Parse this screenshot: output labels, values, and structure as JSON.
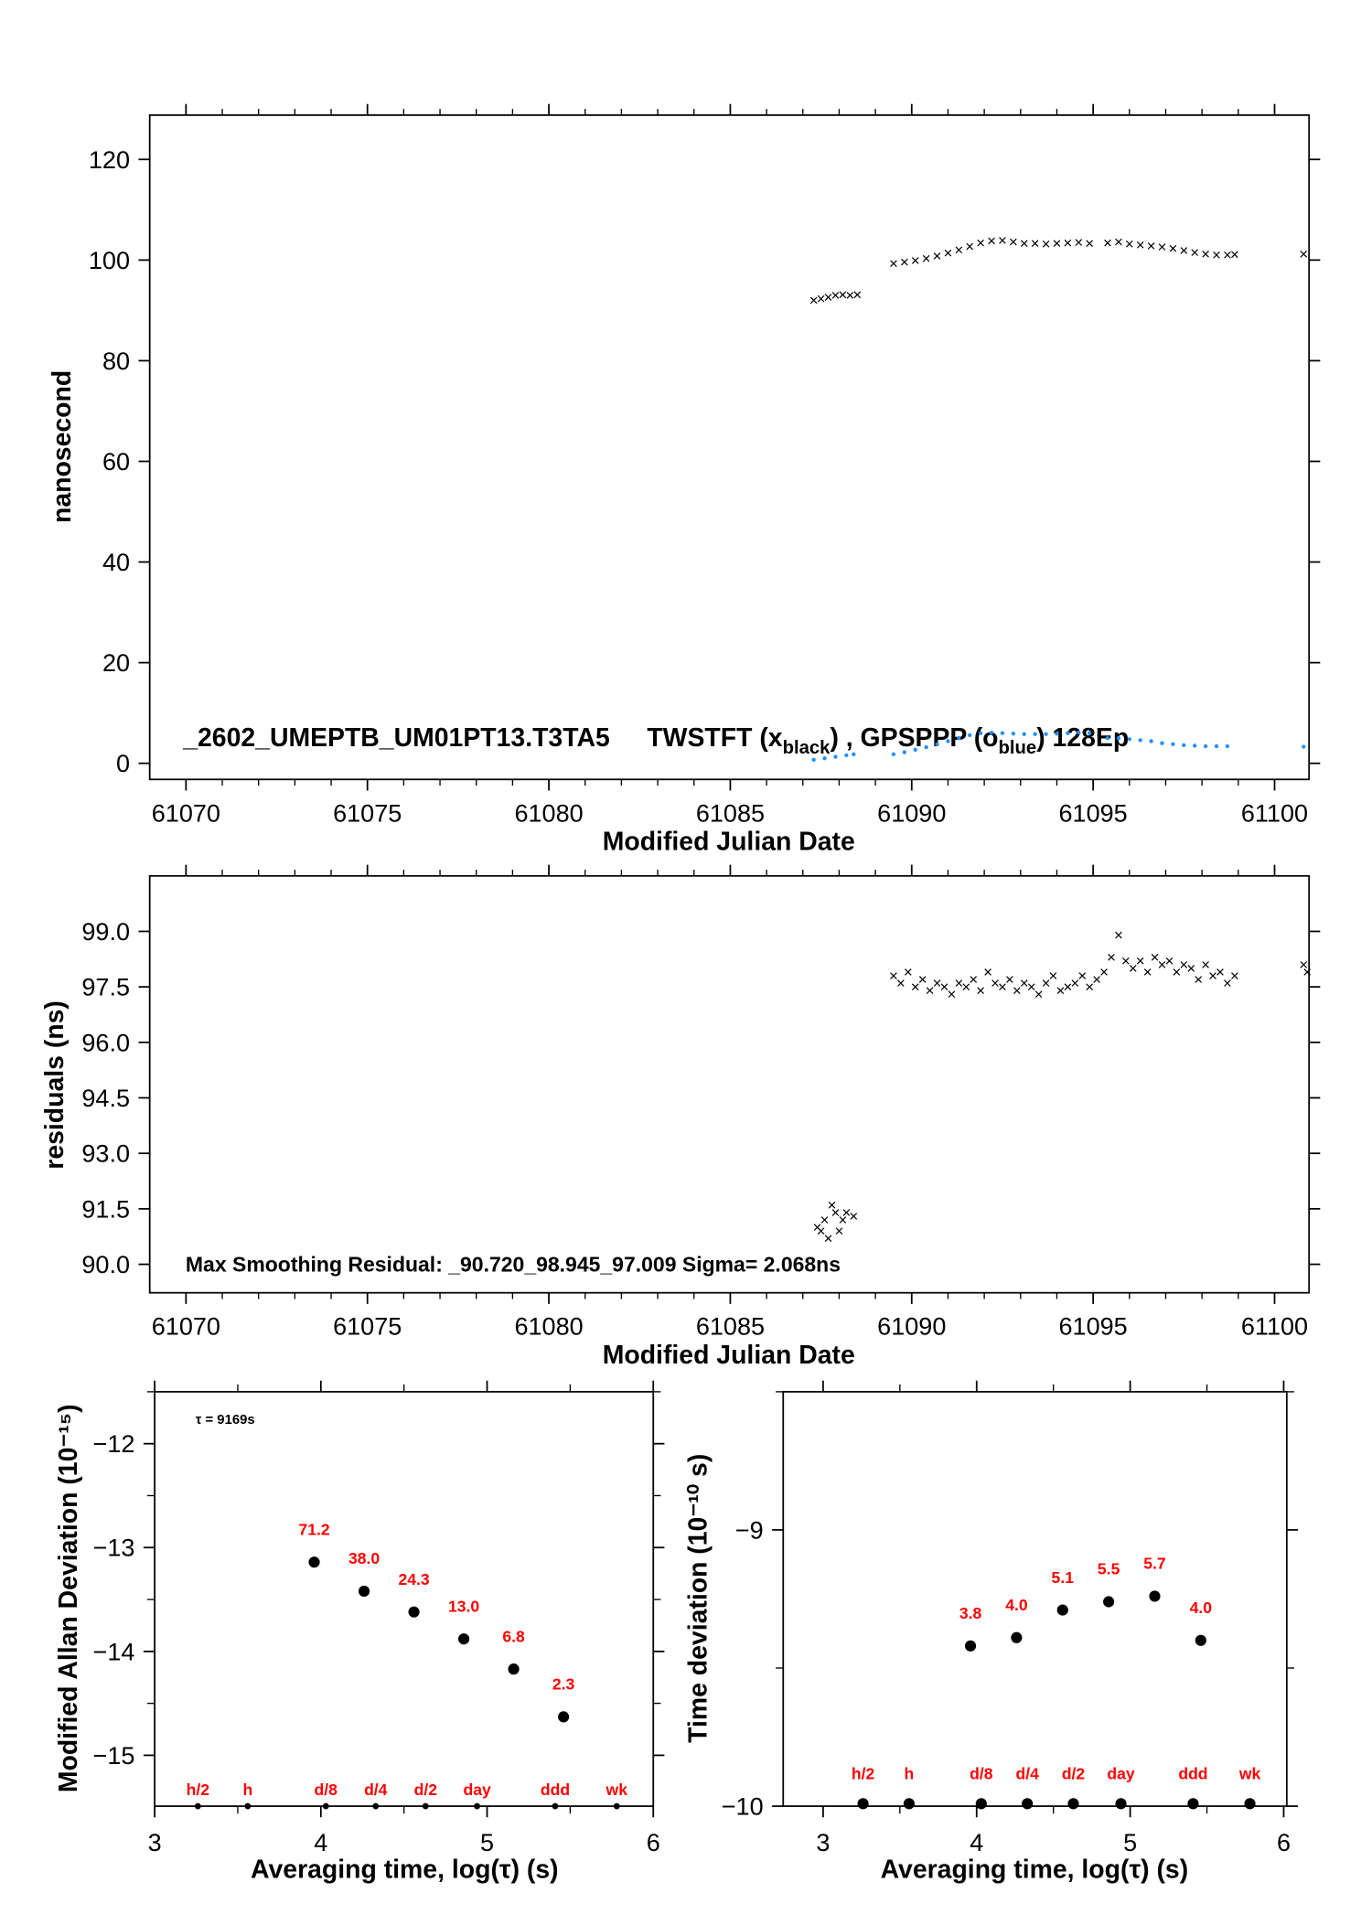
{
  "chart_data": [
    {
      "type": "scatter",
      "title_parts": {
        "main": "_2602_UMEPTB_UM01PT13.T3TA5",
        "s1": "TWSTFT (x",
        "sub1": "black",
        "s2": ") ,  GPSPPP (o",
        "sub2": "blue",
        "s3": ")  128Ep"
      },
      "xlabel": "Modified Julian Date",
      "ylabel": "nanosecond",
      "xlim": [
        61069,
        61100.95
      ],
      "ylim": [
        -3.2,
        128.8
      ],
      "xticks": [
        61070,
        61075,
        61080,
        61085,
        61090,
        61095,
        61100
      ],
      "yticks": [
        0,
        20,
        40,
        60,
        80,
        100,
        120
      ],
      "colors": {
        "black": "#000000",
        "blue": "#1e90ff"
      },
      "series": [
        {
          "name": "TWSTFT",
          "marker": "x",
          "color": "#000000",
          "x": [
            61087.3,
            61087.5,
            61087.7,
            61087.9,
            61088.1,
            61088.3,
            61088.5,
            61089.5,
            61089.8,
            61090.1,
            61090.4,
            61090.7,
            61091.0,
            61091.3,
            61091.6,
            61091.9,
            61092.2,
            61092.5,
            61092.8,
            61093.1,
            61093.4,
            61093.7,
            61094.0,
            61094.3,
            61094.6,
            61094.9,
            61095.4,
            61095.7,
            61096.0,
            61096.3,
            61096.6,
            61096.9,
            61097.2,
            61097.5,
            61097.8,
            61098.1,
            61098.4,
            61098.7,
            61098.9,
            61100.8
          ],
          "y": [
            92.0,
            92.3,
            92.6,
            93.0,
            93.1,
            93.0,
            93.1,
            99.3,
            99.6,
            99.9,
            100.3,
            100.8,
            101.4,
            102.0,
            102.7,
            103.4,
            103.8,
            103.9,
            103.6,
            103.3,
            103.3,
            103.2,
            103.3,
            103.4,
            103.5,
            103.3,
            103.4,
            103.6,
            103.2,
            103.0,
            102.8,
            102.6,
            102.3,
            101.9,
            101.5,
            101.2,
            101.0,
            101.0,
            101.1,
            101.2
          ]
        },
        {
          "name": "GPSPPP",
          "marker": "o",
          "color": "#1e90ff",
          "x": [
            61087.3,
            61087.6,
            61087.9,
            61088.2,
            61088.4,
            61089.5,
            61089.8,
            61090.1,
            61090.4,
            61090.7,
            61091.0,
            61091.3,
            61091.6,
            61091.9,
            61092.2,
            61092.5,
            61092.8,
            61093.1,
            61093.4,
            61093.7,
            61094.0,
            61094.3,
            61094.6,
            61094.9,
            61095.4,
            61095.7,
            61096.0,
            61096.3,
            61096.6,
            61096.9,
            61097.2,
            61097.5,
            61097.8,
            61098.1,
            61098.4,
            61098.7,
            61100.8
          ],
          "y": [
            0.7,
            1.0,
            1.3,
            1.6,
            1.8,
            1.8,
            2.2,
            2.7,
            3.2,
            3.8,
            4.4,
            5.0,
            5.6,
            6.0,
            6.1,
            6.0,
            5.9,
            5.8,
            5.8,
            5.8,
            5.9,
            6.0,
            6.1,
            6.0,
            5.0,
            5.0,
            4.8,
            4.6,
            4.4,
            4.0,
            3.8,
            3.6,
            3.5,
            3.4,
            3.4,
            3.4,
            3.3
          ]
        }
      ]
    },
    {
      "type": "scatter",
      "annotation": "Max Smoothing Residual: _90.720_98.945_97.009  Sigma= 2.068ns",
      "xlabel": "Modified Julian Date",
      "ylabel": "residuals (ns)",
      "xlim": [
        61069,
        61100.95
      ],
      "ylim": [
        89.23,
        100.5
      ],
      "xticks": [
        61070,
        61075,
        61080,
        61085,
        61090,
        61095,
        61100
      ],
      "yticks": [
        "90.0",
        "91.5",
        "93.0",
        "94.5",
        "96.0",
        "97.5",
        "99.0"
      ],
      "series": [
        {
          "marker": "x",
          "color": "#000000",
          "x": [
            61087.4,
            61087.5,
            61087.6,
            61087.7,
            61087.8,
            61087.9,
            61088.0,
            61088.1,
            61088.2,
            61088.4,
            61089.5,
            61089.7,
            61089.9,
            61090.1,
            61090.3,
            61090.5,
            61090.7,
            61090.9,
            61091.1,
            61091.3,
            61091.5,
            61091.7,
            61091.9,
            61092.1,
            61092.3,
            61092.5,
            61092.7,
            61092.9,
            61093.1,
            61093.3,
            61093.5,
            61093.7,
            61093.9,
            61094.1,
            61094.3,
            61094.5,
            61094.7,
            61094.9,
            61095.1,
            61095.3,
            61095.5,
            61095.7,
            61095.9,
            61096.1,
            61096.3,
            61096.5,
            61096.7,
            61096.9,
            61097.1,
            61097.3,
            61097.5,
            61097.7,
            61097.9,
            61098.1,
            61098.3,
            61098.5,
            61098.7,
            61098.9,
            61100.8,
            61100.9
          ],
          "y": [
            91.0,
            90.9,
            91.2,
            90.7,
            91.6,
            91.4,
            90.9,
            91.2,
            91.4,
            91.3,
            97.8,
            97.6,
            97.9,
            97.5,
            97.7,
            97.4,
            97.6,
            97.5,
            97.3,
            97.6,
            97.5,
            97.7,
            97.4,
            97.9,
            97.6,
            97.5,
            97.7,
            97.4,
            97.6,
            97.5,
            97.3,
            97.6,
            97.8,
            97.4,
            97.5,
            97.6,
            97.8,
            97.5,
            97.7,
            97.9,
            98.3,
            98.9,
            98.2,
            98.0,
            98.2,
            97.9,
            98.3,
            98.1,
            98.2,
            97.9,
            98.1,
            98.0,
            97.7,
            98.1,
            97.8,
            97.9,
            97.6,
            97.8,
            98.1,
            97.9
          ]
        }
      ]
    },
    {
      "type": "scatter",
      "annotation": "τ = 9169s",
      "xlabel": "Averaging time, log(τ) (s)",
      "ylabel": "Modified Allan Deviation (10⁻¹⁵)",
      "xlim": [
        3,
        6
      ],
      "ylim": [
        -15.49,
        -11.5
      ],
      "xticks": [
        3,
        4,
        5,
        6
      ],
      "yticks": [
        -15,
        -14,
        -13,
        -12
      ],
      "points": {
        "x": [
          3.96,
          4.26,
          4.56,
          4.86,
          5.16,
          5.46
        ],
        "y": [
          -13.14,
          -13.42,
          -13.62,
          -13.88,
          -14.17,
          -14.63
        ],
        "labels": [
          "71.2",
          "38.0",
          "24.3",
          "13.0",
          "6.8",
          "2.3"
        ]
      },
      "markers": {
        "x": [
          3.26,
          3.56,
          4.03,
          4.33,
          4.63,
          4.94,
          5.41,
          5.78
        ],
        "labels": [
          "h/2",
          "h",
          "d/8",
          "d/4",
          "d/2",
          "day",
          "ddd",
          "wk"
        ]
      }
    },
    {
      "type": "scatter",
      "xlabel": "Averaging time, log(τ) (s)",
      "ylabel": "Time deviation (10⁻¹⁰ s)",
      "xlim": [
        2.74,
        6.02
      ],
      "ylim": [
        -10,
        -8.5
      ],
      "xticks": [
        3,
        4,
        5,
        6
      ],
      "yticks": [
        -10,
        -9
      ],
      "points": {
        "x": [
          3.96,
          4.26,
          4.56,
          4.86,
          5.16,
          5.46
        ],
        "y": [
          -9.42,
          -9.39,
          -9.29,
          -9.26,
          -9.24,
          -9.4
        ],
        "labels": [
          "3.8",
          "4.0",
          "5.1",
          "5.5",
          "5.7",
          "4.0"
        ]
      },
      "markers": {
        "x": [
          3.26,
          3.56,
          4.03,
          4.33,
          4.63,
          4.94,
          5.41,
          5.78
        ],
        "labels": [
          "h/2",
          "h",
          "d/8",
          "d/4",
          "d/2",
          "day",
          "ddd",
          "wk"
        ]
      }
    }
  ]
}
